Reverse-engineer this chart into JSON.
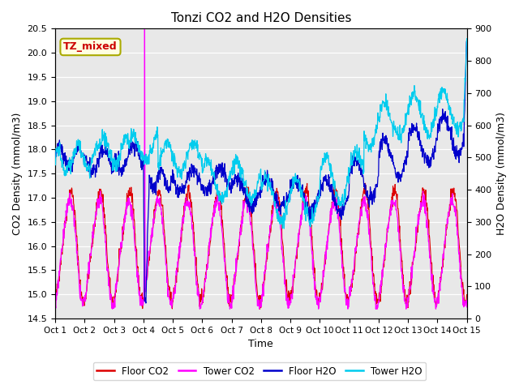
{
  "title": "Tonzi CO2 and H2O Densities",
  "xlabel": "Time",
  "ylabel_left": "CO2 Density (mmol/m3)",
  "ylabel_right": "H2O Density (mmol/m3)",
  "ylim_left": [
    14.5,
    20.5
  ],
  "ylim_right": [
    0,
    900
  ],
  "yticks_left": [
    14.5,
    15.0,
    15.5,
    16.0,
    16.5,
    17.0,
    17.5,
    18.0,
    18.5,
    19.0,
    19.5,
    20.0,
    20.5
  ],
  "yticks_right": [
    0,
    100,
    200,
    300,
    400,
    500,
    600,
    700,
    800,
    900
  ],
  "xtick_labels": [
    "Oct 1",
    "Oct 2",
    "Oct 3",
    "Oct 4",
    "Oct 5",
    "Oct 6",
    "Oct 7",
    "Oct 8",
    "Oct 9",
    "Oct 10",
    "Oct 11",
    "Oct 12",
    "Oct 13",
    "Oct 14",
    "Oct 15"
  ],
  "annotation_text": "TZ_mixed",
  "annotation_facecolor": "lightyellow",
  "annotation_edgecolor": "#aaaa00",
  "annotation_textcolor": "#cc0000",
  "colors": {
    "floor_co2": "#dd0000",
    "tower_co2": "#ff00ff",
    "floor_h2o": "#0000cc",
    "tower_h2o": "#00ccee"
  },
  "legend_labels": [
    "Floor CO2",
    "Tower CO2",
    "Floor H2O",
    "Tower H2O"
  ],
  "background_color": "#e8e8e8",
  "grid_color": "#ffffff",
  "figsize": [
    6.4,
    4.8
  ],
  "dpi": 100
}
